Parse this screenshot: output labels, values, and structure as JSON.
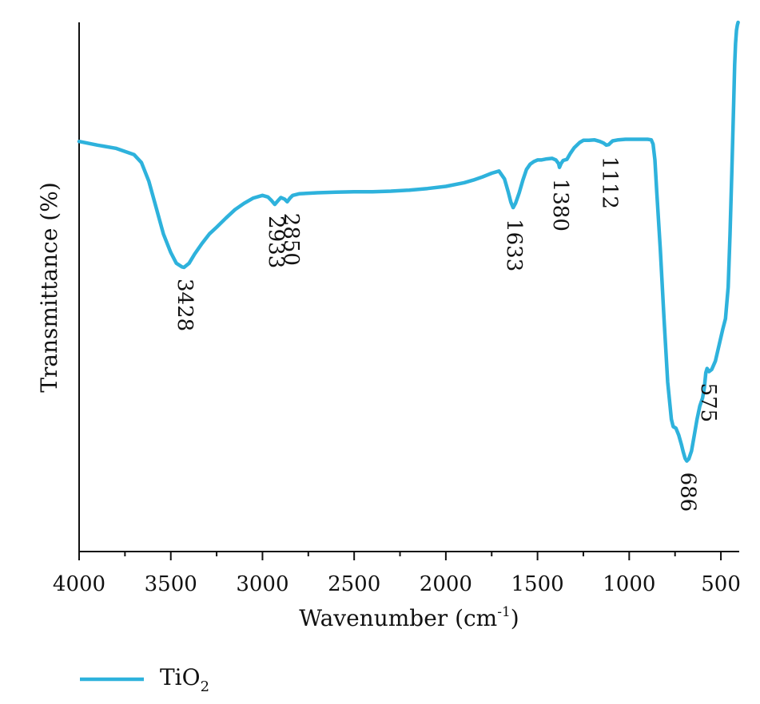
{
  "chart_data": {
    "type": "line",
    "xlabel": "Wavenumber (cm",
    "xlabel_sup": "-1",
    "xlabel_end": ")",
    "ylabel": "Transmittance (%)",
    "xlim": [
      4000,
      400
    ],
    "x_reversed": true,
    "ylim": [
      0,
      100
    ],
    "y_ticks_shown": false,
    "grid": false,
    "legend_position": "bottom-left",
    "x_ticks": [
      4000,
      3500,
      3000,
      2500,
      2000,
      1500,
      1000,
      500
    ],
    "x_tick_labels": [
      "4000",
      "3500",
      "3000",
      "2500",
      "2000",
      "1500",
      "1000",
      "500"
    ],
    "series": [
      {
        "name": "TiO",
        "name_sub": "2",
        "color": "#2eb2dc",
        "x": [
          4000,
          3900,
          3800,
          3700,
          3660,
          3620,
          3580,
          3540,
          3500,
          3470,
          3440,
          3428,
          3400,
          3370,
          3330,
          3290,
          3250,
          3200,
          3150,
          3100,
          3050,
          3000,
          2970,
          2950,
          2933,
          2915,
          2900,
          2880,
          2865,
          2850,
          2835,
          2800,
          2700,
          2600,
          2500,
          2400,
          2300,
          2200,
          2100,
          2000,
          1900,
          1850,
          1800,
          1750,
          1710,
          1680,
          1660,
          1645,
          1633,
          1620,
          1600,
          1580,
          1560,
          1540,
          1520,
          1500,
          1480,
          1450,
          1420,
          1400,
          1385,
          1380,
          1372,
          1360,
          1340,
          1320,
          1300,
          1270,
          1250,
          1220,
          1190,
          1160,
          1140,
          1125,
          1112,
          1100,
          1090,
          1060,
          1020,
          980,
          940,
          900,
          880,
          870,
          860,
          850,
          830,
          810,
          790,
          770,
          760,
          745,
          730,
          715,
          705,
          695,
          686,
          675,
          660,
          645,
          630,
          615,
          600,
          590,
          582,
          575,
          565,
          550,
          530,
          510,
          490,
          475,
          460,
          450,
          440,
          430,
          425,
          420,
          415,
          410,
          406
        ],
        "y": [
          77.5,
          76.8,
          76.2,
          75.0,
          73.5,
          70.0,
          65.0,
          60.0,
          56.5,
          54.5,
          53.8,
          53.7,
          54.5,
          56.2,
          58.2,
          60.0,
          61.3,
          63.0,
          64.6,
          65.8,
          66.8,
          67.3,
          67.0,
          66.3,
          65.6,
          66.3,
          66.9,
          66.6,
          66.1,
          66.8,
          67.3,
          67.6,
          67.8,
          67.9,
          68.0,
          68.0,
          68.1,
          68.3,
          68.6,
          69.0,
          69.7,
          70.2,
          70.8,
          71.5,
          71.9,
          70.4,
          68.0,
          66.0,
          65.0,
          65.8,
          67.8,
          70.2,
          72.2,
          73.2,
          73.7,
          74.0,
          74.0,
          74.2,
          74.3,
          74.0,
          73.3,
          72.6,
          73.3,
          73.9,
          74.1,
          75.3,
          76.3,
          77.3,
          77.7,
          77.7,
          77.8,
          77.5,
          77.2,
          76.8,
          76.9,
          77.3,
          77.6,
          77.8,
          77.9,
          77.9,
          77.9,
          77.9,
          77.8,
          77.0,
          74.0,
          68.0,
          57.0,
          44.0,
          32.0,
          25.0,
          23.6,
          23.3,
          22.0,
          20.2,
          18.8,
          17.6,
          17.1,
          17.5,
          19.0,
          22.0,
          25.0,
          27.5,
          29.0,
          31.0,
          33.8,
          34.6,
          34.0,
          34.4,
          36.0,
          39.0,
          42.0,
          44.0,
          50.0,
          60.0,
          72.0,
          85.0,
          92.0,
          96.0,
          98.5,
          99.5,
          100
        ]
      }
    ],
    "annotations": [
      {
        "text": "3428",
        "x": 3428,
        "y": 53.7
      },
      {
        "text": "2933",
        "x": 2933,
        "y": 65.6
      },
      {
        "text": "2850",
        "x": 2850,
        "y": 66.1
      },
      {
        "text": "1633",
        "x": 1633,
        "y": 65.0
      },
      {
        "text": "1380",
        "x": 1380,
        "y": 72.6
      },
      {
        "text": "1112",
        "x": 1112,
        "y": 76.8
      },
      {
        "text": "686",
        "x": 686,
        "y": 17.1
      },
      {
        "text": "575",
        "x": 575,
        "y": 34.0
      }
    ]
  }
}
